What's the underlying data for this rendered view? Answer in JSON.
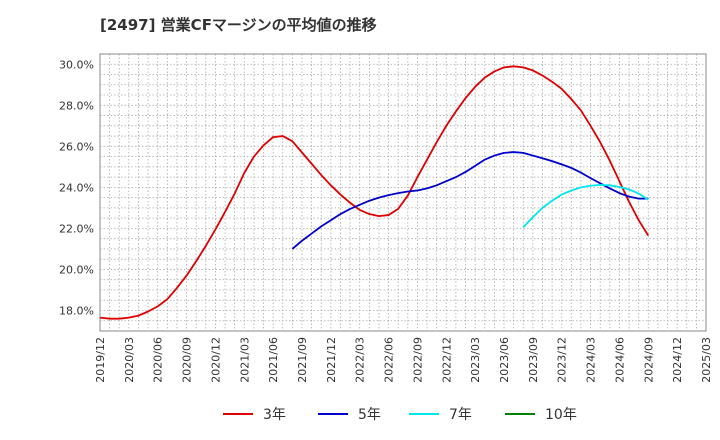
{
  "chart_data": {
    "type": "line",
    "title": "[2497]  営業CFマージンの平均値の推移",
    "xlabel": "",
    "ylabel": "",
    "ylim": [
      17.0,
      30.5
    ],
    "yticks": [
      18,
      20,
      22,
      24,
      26,
      28,
      30
    ],
    "ytick_labels": [
      "18.0%",
      "20.0%",
      "22.0%",
      "24.0%",
      "26.0%",
      "28.0%",
      "30.0%"
    ],
    "x_start": "2019-12",
    "x_end": "2025-03",
    "xtick_labels": [
      "2019/12",
      "2020/03",
      "2020/06",
      "2020/09",
      "2020/12",
      "2021/03",
      "2021/06",
      "2021/09",
      "2021/12",
      "2022/03",
      "2022/06",
      "2022/09",
      "2022/12",
      "2023/03",
      "2023/06",
      "2023/09",
      "2023/12",
      "2024/03",
      "2024/06",
      "2024/09",
      "2024/12",
      "2025/03"
    ],
    "grid": true,
    "legend_position": "bottom",
    "series": [
      {
        "name": "3年",
        "color": "#e00000",
        "x": [
          "2019-12",
          "2020-01",
          "2020-02",
          "2020-03",
          "2020-04",
          "2020-05",
          "2020-06",
          "2020-07",
          "2020-08",
          "2020-09",
          "2020-10",
          "2020-11",
          "2020-12",
          "2021-01",
          "2021-02",
          "2021-03",
          "2021-04",
          "2021-05",
          "2021-06",
          "2021-07",
          "2021-08",
          "2021-09",
          "2021-10",
          "2021-11",
          "2021-12",
          "2022-01",
          "2022-02",
          "2022-03",
          "2022-04",
          "2022-05",
          "2022-06",
          "2022-07",
          "2022-08",
          "2022-09",
          "2022-10",
          "2022-11",
          "2022-12",
          "2023-01",
          "2023-02",
          "2023-03",
          "2023-04",
          "2023-05",
          "2023-06",
          "2023-07",
          "2023-08",
          "2023-09",
          "2023-10",
          "2023-11",
          "2023-12",
          "2024-01",
          "2024-02",
          "2024-03",
          "2024-04",
          "2024-05",
          "2024-06",
          "2024-07",
          "2024-08",
          "2024-09"
        ],
        "values": [
          17.65,
          17.6,
          17.6,
          17.65,
          17.75,
          17.95,
          18.2,
          18.55,
          19.1,
          19.7,
          20.4,
          21.15,
          21.95,
          22.8,
          23.7,
          24.7,
          25.5,
          26.05,
          26.45,
          26.5,
          26.25,
          25.7,
          25.15,
          24.6,
          24.1,
          23.65,
          23.25,
          22.9,
          22.7,
          22.6,
          22.65,
          22.95,
          23.6,
          24.5,
          25.35,
          26.2,
          27.0,
          27.7,
          28.35,
          28.9,
          29.35,
          29.65,
          29.85,
          29.9,
          29.85,
          29.7,
          29.45,
          29.15,
          28.8,
          28.3,
          27.75,
          27.0,
          26.2,
          25.3,
          24.3,
          23.3,
          22.4,
          21.65
        ]
      },
      {
        "name": "5年",
        "color": "#0000cc",
        "x": [
          "2021-08",
          "2021-09",
          "2021-10",
          "2021-11",
          "2021-12",
          "2022-01",
          "2022-02",
          "2022-03",
          "2022-04",
          "2022-05",
          "2022-06",
          "2022-07",
          "2022-08",
          "2022-09",
          "2022-10",
          "2022-11",
          "2022-12",
          "2023-01",
          "2023-02",
          "2023-03",
          "2023-04",
          "2023-05",
          "2023-06",
          "2023-07",
          "2023-08",
          "2023-09",
          "2023-10",
          "2023-11",
          "2023-12",
          "2024-01",
          "2024-02",
          "2024-03",
          "2024-04",
          "2024-05",
          "2024-06",
          "2024-07",
          "2024-08",
          "2024-09"
        ],
        "values": [
          21.0,
          21.4,
          21.75,
          22.1,
          22.4,
          22.7,
          22.95,
          23.15,
          23.35,
          23.5,
          23.62,
          23.72,
          23.8,
          23.85,
          23.95,
          24.1,
          24.3,
          24.5,
          24.75,
          25.05,
          25.35,
          25.55,
          25.68,
          25.72,
          25.68,
          25.55,
          25.42,
          25.28,
          25.12,
          24.95,
          24.72,
          24.45,
          24.2,
          23.95,
          23.72,
          23.55,
          23.45,
          23.45
        ]
      },
      {
        "name": "7年",
        "color": "#00e5ee",
        "x": [
          "2023-08",
          "2023-09",
          "2023-10",
          "2023-11",
          "2023-12",
          "2024-01",
          "2024-02",
          "2024-03",
          "2024-04",
          "2024-05",
          "2024-06",
          "2024-07",
          "2024-08",
          "2024-09"
        ],
        "values": [
          22.05,
          22.55,
          23.0,
          23.35,
          23.65,
          23.85,
          24.0,
          24.08,
          24.12,
          24.1,
          24.02,
          23.9,
          23.7,
          23.4
        ]
      },
      {
        "name": "10年",
        "color": "#008000",
        "x": [],
        "values": []
      }
    ]
  }
}
